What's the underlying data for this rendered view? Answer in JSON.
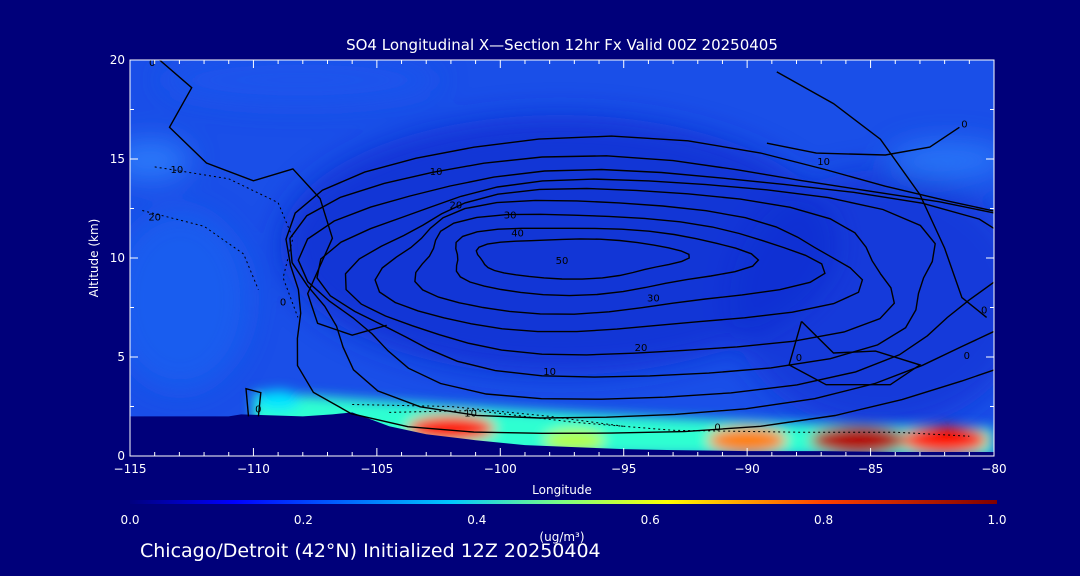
{
  "chart_data": {
    "type": "heatmap",
    "title": "SO4 Longitudinal X—Section 12hr  Fx Valid 00Z 20250405",
    "xlabel": "Longitude",
    "ylabel": "Altitude (km)",
    "xlim": [
      -115,
      -80
    ],
    "ylim": [
      0,
      20
    ],
    "x_ticks": [
      -115,
      -110,
      -105,
      -100,
      -95,
      -90,
      -85,
      -80
    ],
    "y_ticks": [
      0,
      5,
      10,
      15,
      20
    ],
    "colorbar": {
      "label": "(ug/m³)",
      "range": [
        0.0,
        1.0
      ],
      "ticks": [
        "0.0",
        "0.2",
        "0.4",
        "0.6",
        "0.8",
        "1.0"
      ]
    },
    "contour_labels": [
      {
        "lon": -114.1,
        "alt": 19.9,
        "text": "0"
      },
      {
        "lon": -113.1,
        "alt": 14.5,
        "text": "10"
      },
      {
        "lon": -114.0,
        "alt": 12.1,
        "text": "20"
      },
      {
        "lon": -109.8,
        "alt": 2.4,
        "text": "0"
      },
      {
        "lon": -108.8,
        "alt": 7.8,
        "text": "0"
      },
      {
        "lon": -102.6,
        "alt": 14.4,
        "text": "10"
      },
      {
        "lon": -101.8,
        "alt": 12.7,
        "text": "20"
      },
      {
        "lon": -99.6,
        "alt": 12.2,
        "text": "30"
      },
      {
        "lon": -99.3,
        "alt": 11.3,
        "text": "40"
      },
      {
        "lon": -97.5,
        "alt": 9.9,
        "text": "50"
      },
      {
        "lon": -93.8,
        "alt": 8.0,
        "text": "30"
      },
      {
        "lon": -94.3,
        "alt": 5.5,
        "text": "20"
      },
      {
        "lon": -98.0,
        "alt": 4.3,
        "text": "10"
      },
      {
        "lon": -101.2,
        "alt": 2.2,
        "text": "10"
      },
      {
        "lon": -91.2,
        "alt": 1.5,
        "text": "0"
      },
      {
        "lon": -86.9,
        "alt": 14.9,
        "text": "10"
      },
      {
        "lon": -81.2,
        "alt": 16.8,
        "text": "0"
      },
      {
        "lon": -87.9,
        "alt": 5.0,
        "text": "0"
      },
      {
        "lon": -81.1,
        "alt": 5.1,
        "text": "0"
      },
      {
        "lon": -80.4,
        "alt": 7.4,
        "text": "0"
      }
    ],
    "contour_peak": {
      "lon": -97.5,
      "alt": 10.0,
      "max_label": 50,
      "levels": [
        10,
        20,
        30,
        40,
        50
      ]
    },
    "concentration_hotspots": [
      {
        "lon": -102.0,
        "alt": 1.4,
        "value": 0.85
      },
      {
        "lon": -97.0,
        "alt": 0.8,
        "value": 0.55
      },
      {
        "lon": -90.0,
        "alt": 0.8,
        "value": 0.75
      },
      {
        "lon": -85.5,
        "alt": 0.8,
        "value": 0.95
      },
      {
        "lon": -82.0,
        "alt": 0.8,
        "value": 0.85
      },
      {
        "lon": -109.0,
        "alt": 2.8,
        "value": 0.35
      }
    ]
  },
  "caption": "Chicago/Detroit (42°N) Initialized 12Z 20250404",
  "colors": {
    "background": "#00007a",
    "axes": "#ffffff",
    "terrain": "#00007a",
    "colormap": [
      "#00007f",
      "#0000ff",
      "#007fff",
      "#00ffff",
      "#7fff7f",
      "#ffff00",
      "#ff7f00",
      "#ff0000",
      "#7f0000"
    ]
  }
}
